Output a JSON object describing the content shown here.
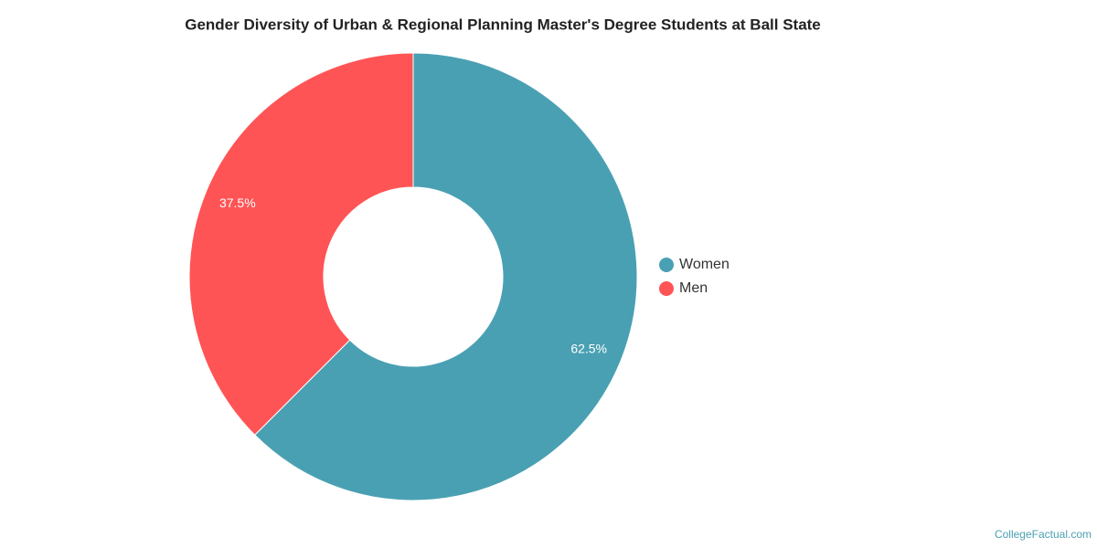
{
  "chart_data": {
    "type": "donut",
    "title": "Gender Diversity of Urban & Regional Planning Master's Degree Students at Ball State",
    "categories": [
      "Women",
      "Men"
    ],
    "values": [
      62.5,
      37.5
    ],
    "value_labels": [
      "62.5%",
      "37.5%"
    ],
    "colors": [
      "#4aa0b3",
      "#ff5455"
    ],
    "legend": "right"
  },
  "credit": "CollegeFactual.com"
}
